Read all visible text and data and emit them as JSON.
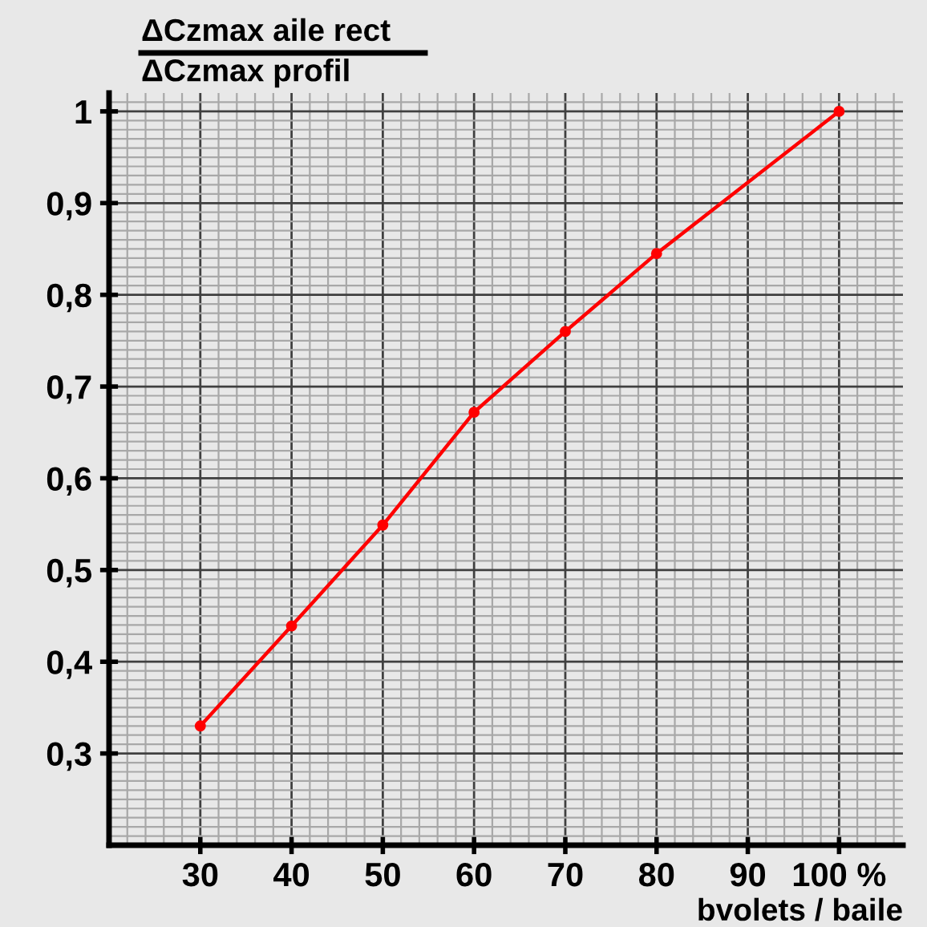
{
  "chart_data": {
    "type": "line",
    "ylabel": "ΔCzmax aile rect\nΔCzmax profil",
    "xlabel": "bvolets / baile",
    "x": [
      30,
      40,
      50,
      60,
      70,
      80,
      100
    ],
    "series": [
      {
        "color": "#ff0000",
        "values": [
          0.33,
          0.439,
          0.549,
          0.672,
          0.76,
          0.845,
          1.0
        ]
      }
    ],
    "xlim": [
      20,
      107
    ],
    "ylim": [
      0.2,
      1.02
    ],
    "xticks": [
      30,
      40,
      50,
      60,
      70,
      80,
      90,
      {
        "value": 100,
        "label": "100 %"
      }
    ],
    "yticks": [
      {
        "value": 0.3,
        "label": "0,3"
      },
      {
        "value": 0.4,
        "label": "0,4"
      },
      {
        "value": 0.5,
        "label": "0,5"
      },
      {
        "value": 0.6,
        "label": "0,6"
      },
      {
        "value": 0.7,
        "label": "0,7"
      },
      {
        "value": 0.8,
        "label": "0,8"
      },
      {
        "value": 0.9,
        "label": "0,9"
      },
      {
        "value": 1,
        "label": "1"
      }
    ],
    "grid": true,
    "marker": "circle",
    "line_style": "solid"
  }
}
